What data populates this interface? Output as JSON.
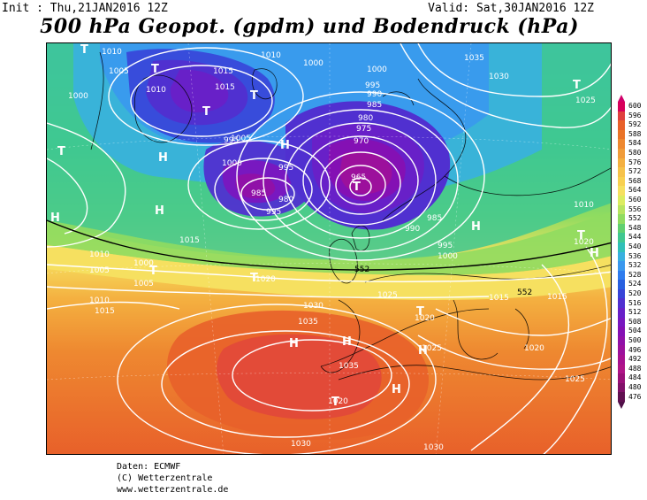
{
  "header": {
    "init": "Init : Thu,21JAN2016 12Z",
    "valid": "Valid: Sat,30JAN2016 12Z",
    "title": "500 hPa Geopot. (gpdm) und Bodendruck (hPa)"
  },
  "legend": {
    "values": [
      "600",
      "596",
      "592",
      "588",
      "584",
      "580",
      "576",
      "572",
      "568",
      "564",
      "560",
      "556",
      "552",
      "548",
      "544",
      "540",
      "536",
      "532",
      "528",
      "524",
      "520",
      "516",
      "512",
      "508",
      "504",
      "500",
      "496",
      "492",
      "488",
      "484",
      "480",
      "476"
    ],
    "colors": [
      "#d8005a",
      "#e0403e",
      "#e8602a",
      "#ea7428",
      "#ee8830",
      "#f09c3a",
      "#f4b040",
      "#f6c24a",
      "#f8d050",
      "#f6e060",
      "#dcec60",
      "#b8e460",
      "#90dc60",
      "#60d070",
      "#40c890",
      "#30c0b8",
      "#38b0e0",
      "#3a98ee",
      "#2e7cee",
      "#2860e0",
      "#3844d8",
      "#5030d0",
      "#6820c8",
      "#7818c0",
      "#8410b4",
      "#9010a8",
      "#9c109c",
      "#a81090",
      "#b01488",
      "#9a1078",
      "#801068",
      "#601050"
    ],
    "bottom_color": "#501048",
    "top_color": "#d0006a"
  },
  "map": {
    "isobar_labels": [
      "1010",
      "1015",
      "1000",
      "1005",
      "1010",
      "1015",
      "1010",
      "995",
      "1000",
      "1000",
      "990",
      "995",
      "985",
      "980",
      "975",
      "970",
      "965",
      "995",
      "1000",
      "1005",
      "985",
      "980",
      "995",
      "990",
      "985",
      "1000",
      "995",
      "1035",
      "1030",
      "1025",
      "1020",
      "1010",
      "1020",
      "1015",
      "1015",
      "1020",
      "1025",
      "1030",
      "1035",
      "1025",
      "1035",
      "1030",
      "1030",
      "1020",
      "1025",
      "1010",
      "1005",
      "1000",
      "1005",
      "1010",
      "1015",
      "1015",
      "1020"
    ],
    "pressure_systems": [
      "T",
      "T",
      "T",
      "T",
      "T",
      "T",
      "T",
      "H",
      "H",
      "H",
      "H",
      "T",
      "T",
      "T",
      "T",
      "H",
      "H",
      "H",
      "T",
      "H",
      "H",
      "H"
    ],
    "band_labels": [
      "552",
      "552"
    ]
  },
  "footer": {
    "line1": "Daten: ECMWF",
    "line2": "(C) Wetterzentrale",
    "line3": "www.wetterzentrale.de"
  }
}
